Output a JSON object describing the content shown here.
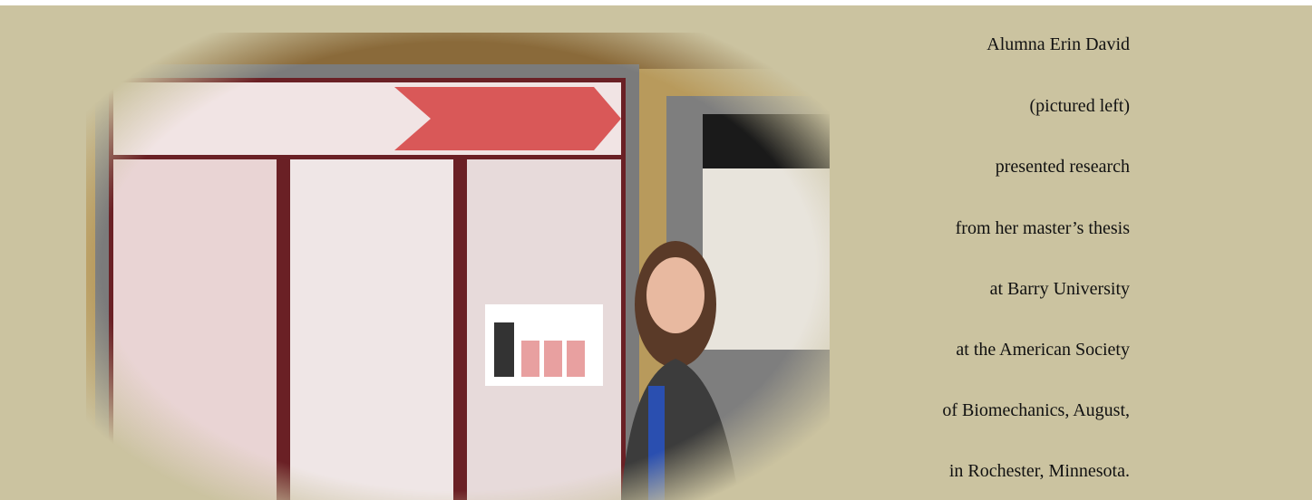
{
  "caption": {
    "lines": [
      "Alumna Erin David",
      "(pictured left)",
      "presented research",
      "from her master’s thesis",
      "at Barry University",
      "at the American Society",
      "of Biomechanics, August,",
      "in Rochester, Minnesota."
    ]
  }
}
